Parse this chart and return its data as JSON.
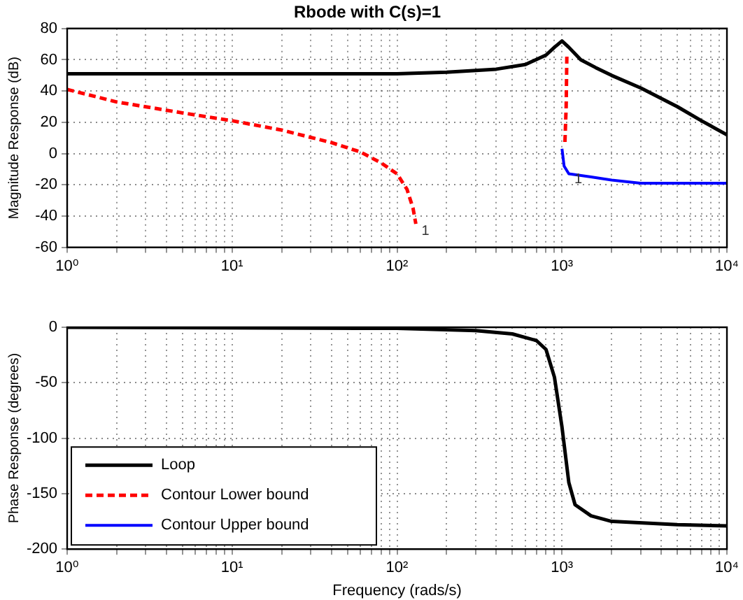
{
  "chart_data": [
    {
      "type": "line",
      "title": "Rbode with C(s)=1",
      "ylabel": "Magnitude Response (dB)",
      "log": "x",
      "grid": true,
      "legend": false,
      "marker": "none",
      "xlim": [
        1,
        10000
      ],
      "ylim": [
        -60,
        80
      ],
      "yticks": [
        -60,
        -40,
        -20,
        0,
        20,
        40,
        60,
        80
      ],
      "xticks": [
        {
          "value": 1,
          "label": "10⁰"
        },
        {
          "value": 2,
          "label": null
        },
        {
          "value": 3,
          "label": null
        },
        {
          "value": 4,
          "label": null
        },
        {
          "value": 5,
          "label": null
        },
        {
          "value": 6,
          "label": null
        },
        {
          "value": 7,
          "label": null
        },
        {
          "value": 8,
          "label": null
        },
        {
          "value": 9,
          "label": null
        },
        {
          "value": 10,
          "label": "10¹"
        },
        {
          "value": 20,
          "label": null
        },
        {
          "value": 30,
          "label": null
        },
        {
          "value": 40,
          "label": null
        },
        {
          "value": 50,
          "label": null
        },
        {
          "value": 60,
          "label": null
        },
        {
          "value": 70,
          "label": null
        },
        {
          "value": 80,
          "label": null
        },
        {
          "value": 90,
          "label": null
        },
        {
          "value": 100,
          "label": "10²"
        },
        {
          "value": 200,
          "label": null
        },
        {
          "value": 300,
          "label": null
        },
        {
          "value": 400,
          "label": null
        },
        {
          "value": 500,
          "label": null
        },
        {
          "value": 600,
          "label": null
        },
        {
          "value": 700,
          "label": null
        },
        {
          "value": 800,
          "label": null
        },
        {
          "value": 900,
          "label": null
        },
        {
          "value": 1000,
          "label": "10³"
        },
        {
          "value": 2000,
          "label": null
        },
        {
          "value": 3000,
          "label": null
        },
        {
          "value": 4000,
          "label": null
        },
        {
          "value": 5000,
          "label": null
        },
        {
          "value": 6000,
          "label": null
        },
        {
          "value": 7000,
          "label": null
        },
        {
          "value": 8000,
          "label": null
        },
        {
          "value": 9000,
          "label": null
        },
        {
          "value": 10000,
          "label": "10⁴"
        }
      ],
      "series": [
        {
          "color": "#000000",
          "line_style": "solid",
          "x": [
            1,
            10,
            100,
            200,
            400,
            600,
            800,
            900,
            1000,
            1100,
            1300,
            1600,
            2000,
            3000,
            5000,
            7000,
            10000
          ],
          "values": [
            51,
            51,
            51,
            52,
            54,
            57,
            63,
            68,
            72,
            68,
            60,
            55,
            50,
            42,
            30,
            21,
            12
          ]
        },
        {
          "color": "#ff0000",
          "line_style": "dashed",
          "x": [
            1,
            2,
            5,
            10,
            20,
            40,
            60,
            80,
            100,
            115,
            125,
            130,
            500,
            1070,
            1060,
            1040
          ],
          "values": [
            41,
            33,
            26,
            21,
            15,
            7,
            1,
            -6,
            -13,
            -23,
            -35,
            -45,
            null,
            62,
            30,
            5
          ]
        },
        {
          "color": "#0000ff",
          "line_style": "solid",
          "x": [
            1000,
            1030,
            1100,
            1500,
            2000,
            3000,
            5000,
            10000
          ],
          "values": [
            3,
            -8,
            -13,
            -15,
            -17,
            -19,
            -19,
            -19
          ]
        }
      ],
      "annotations": [
        {
          "text": "1",
          "x": 130,
          "y": -45
        },
        {
          "text": "1",
          "x": 1100,
          "y": -12
        }
      ]
    },
    {
      "type": "line",
      "xlabel": "Frequency (rads/s)",
      "ylabel": "Phase Response (degrees)",
      "log": "x",
      "grid": true,
      "legend": "bottom left",
      "marker": "none",
      "xlim": [
        1,
        10000
      ],
      "ylim": [
        -200,
        0
      ],
      "yticks": [
        -200,
        -150,
        -100,
        -50,
        0
      ],
      "xticks": [
        {
          "value": 1,
          "label": "10⁰"
        },
        {
          "value": 2,
          "label": null
        },
        {
          "value": 3,
          "label": null
        },
        {
          "value": 4,
          "label": null
        },
        {
          "value": 5,
          "label": null
        },
        {
          "value": 6,
          "label": null
        },
        {
          "value": 7,
          "label": null
        },
        {
          "value": 8,
          "label": null
        },
        {
          "value": 9,
          "label": null
        },
        {
          "value": 10,
          "label": "10¹"
        },
        {
          "value": 20,
          "label": null
        },
        {
          "value": 30,
          "label": null
        },
        {
          "value": 40,
          "label": null
        },
        {
          "value": 50,
          "label": null
        },
        {
          "value": 60,
          "label": null
        },
        {
          "value": 70,
          "label": null
        },
        {
          "value": 80,
          "label": null
        },
        {
          "value": 90,
          "label": null
        },
        {
          "value": 100,
          "label": "10²"
        },
        {
          "value": 200,
          "label": null
        },
        {
          "value": 300,
          "label": null
        },
        {
          "value": 400,
          "label": null
        },
        {
          "value": 500,
          "label": null
        },
        {
          "value": 600,
          "label": null
        },
        {
          "value": 700,
          "label": null
        },
        {
          "value": 800,
          "label": null
        },
        {
          "value": 900,
          "label": null
        },
        {
          "value": 1000,
          "label": "10³"
        },
        {
          "value": 2000,
          "label": null
        },
        {
          "value": 3000,
          "label": null
        },
        {
          "value": 4000,
          "label": null
        },
        {
          "value": 5000,
          "label": null
        },
        {
          "value": 6000,
          "label": null
        },
        {
          "value": 7000,
          "label": null
        },
        {
          "value": 8000,
          "label": null
        },
        {
          "value": 9000,
          "label": null
        },
        {
          "value": 10000,
          "label": "10⁴"
        }
      ],
      "series": [
        {
          "name": "Loop",
          "color": "#000000",
          "line_style": "solid",
          "x": [
            1,
            100,
            300,
            500,
            700,
            800,
            900,
            1000,
            1100,
            1200,
            1500,
            2000,
            5000,
            10000
          ],
          "values": [
            0,
            -1,
            -3,
            -6,
            -12,
            -20,
            -45,
            -90,
            -140,
            -160,
            -170,
            -175,
            -178,
            -179
          ]
        },
        {
          "name": "Contour Lower bound",
          "color": "#ff0000",
          "line_style": "dashed"
        },
        {
          "name": "Contour Upper bound",
          "color": "#0000ff",
          "line_style": "solid"
        }
      ]
    }
  ]
}
